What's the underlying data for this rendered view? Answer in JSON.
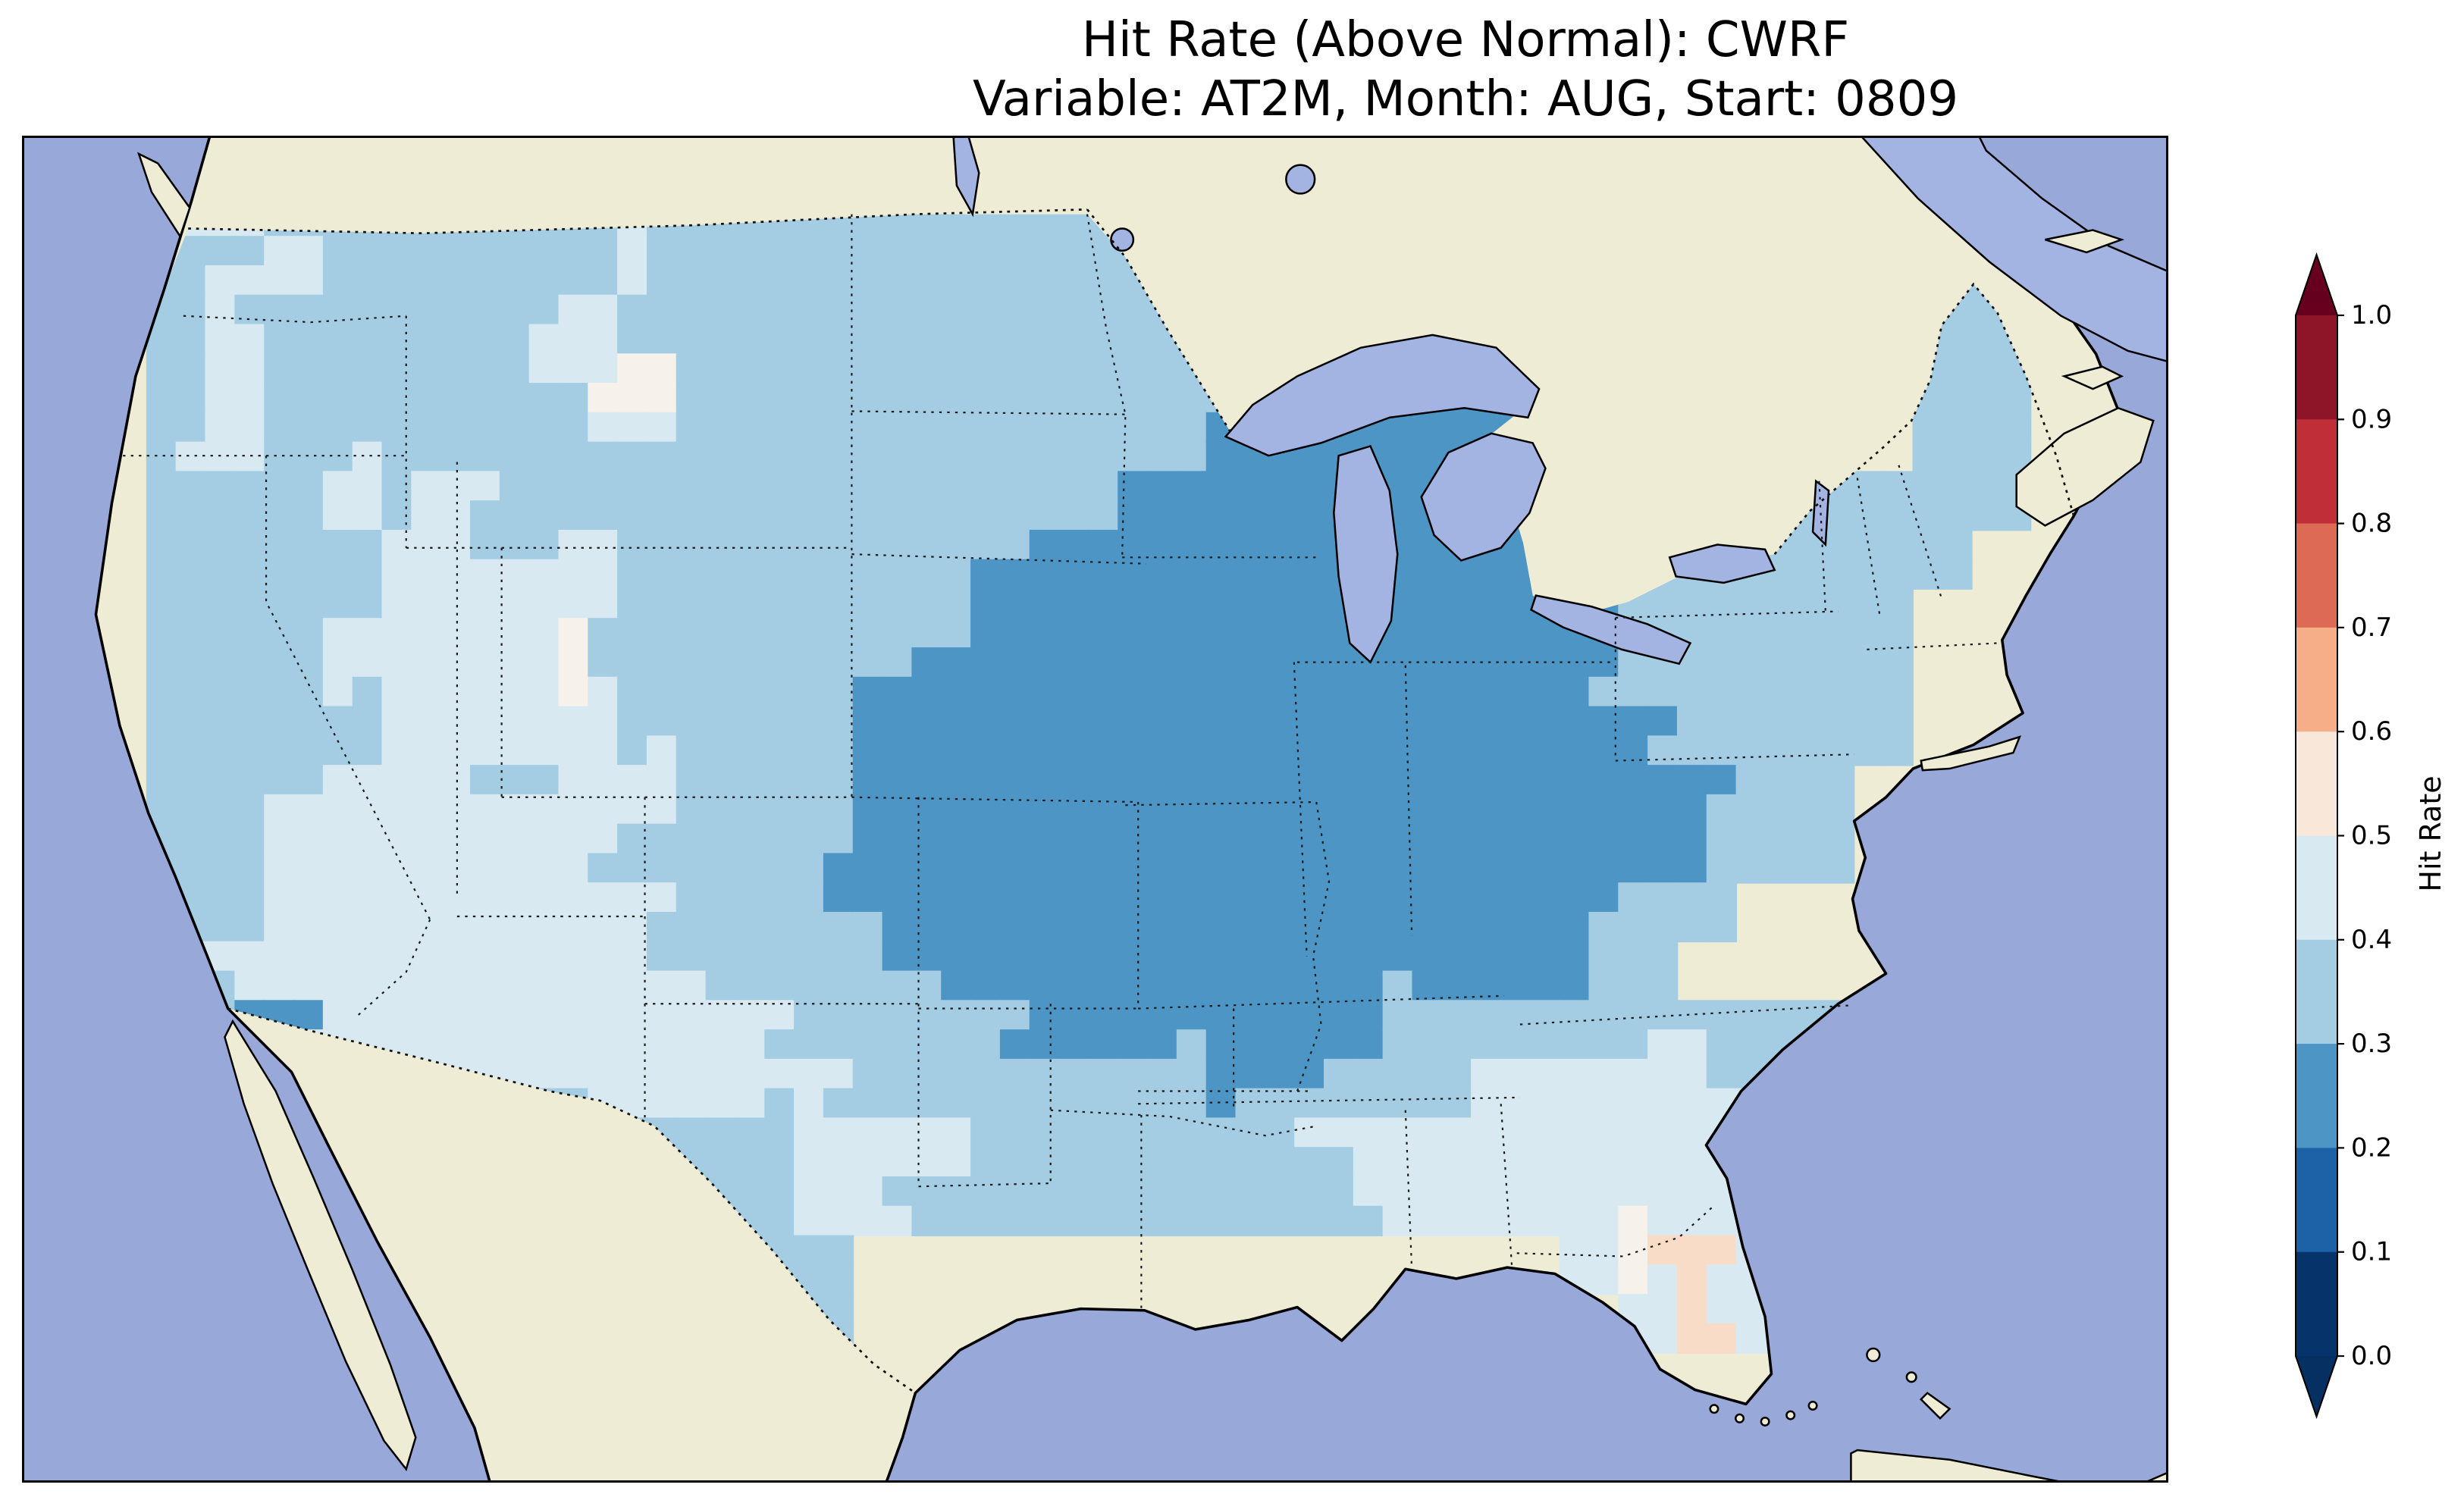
{
  "title": {
    "line1": "Hit Rate (Above Normal): CWRF",
    "line2": "Variable: AT2M, Month: AUG, Start: 0809"
  },
  "colorbar": {
    "label": "Hit Rate",
    "ticks": [
      "1.0",
      "0.9",
      "0.8",
      "0.7",
      "0.6",
      "0.5",
      "0.4",
      "0.3",
      "0.2",
      "0.1",
      "0.0"
    ]
  },
  "chart_data": {
    "type": "heatmap",
    "title": "Hit Rate (Above Normal): CWRF",
    "subtitle": "Variable: AT2M, Month: AUG, Start: 0809",
    "model": "CWRF",
    "variable": "AT2M",
    "month": "AUG",
    "start": "0809",
    "metric": "Hit Rate (Above Normal)",
    "colorbar_label": "Hit Rate",
    "colorbar_ticks": [
      0.0,
      0.1,
      0.2,
      0.3,
      0.4,
      0.5,
      0.6,
      0.7,
      0.8,
      0.9,
      1.0
    ],
    "colormap": "RdBu reversed, discrete 0.1 bins, arrow extensions below 0.0 and above 1.0",
    "bins": [
      {
        "range": [
          0.0,
          0.1
        ],
        "color": "#07336b"
      },
      {
        "range": [
          0.1,
          0.2
        ],
        "color": "#1d61a7"
      },
      {
        "range": [
          0.2,
          0.3
        ],
        "color": "#4c95c5"
      },
      {
        "range": [
          0.3,
          0.4
        ],
        "color": "#a4cde3"
      },
      {
        "range": [
          0.4,
          0.5
        ],
        "color": "#d9e9f1"
      },
      {
        "range": [
          0.5,
          0.6
        ],
        "color": "#f9e8da"
      },
      {
        "range": [
          0.6,
          0.7
        ],
        "color": "#f5ae87"
      },
      {
        "range": [
          0.7,
          0.8
        ],
        "color": "#dd6a54"
      },
      {
        "range": [
          0.8,
          0.9
        ],
        "color": "#c02f38"
      },
      {
        "range": [
          0.9,
          1.0
        ],
        "color": "#8e1428"
      }
    ],
    "under_arrow_color": "#053061",
    "over_arrow_color": "#67001f",
    "map_colors": {
      "ocean": "#98a9d9",
      "non_us_land": "#efecd6",
      "lakes": "#a3b3e2",
      "coastline": "#000000",
      "boundaries": "dotted black (states, Canada, Mexico)"
    },
    "cell_colors": {
      "2": "#4c95c5",
      "3": "#a4cde3",
      "4": "#d9e9f1",
      "5": "#f6f1ea",
      "6": "#f8dcc8"
    },
    "cell_legend": {
      "2": "hit rate 0.2-0.3",
      "3": "hit rate 0.3-0.4",
      "4": "hit rate 0.4-0.5",
      "5": "hit rate ~0.5 (near-white cells)",
      "6": "hit rate 0.5-0.6 (pale red cells)"
    },
    "observed_pattern": [
      {
        "region": "Upper Midwest / Great Lakes / Corn Belt (WI, MI, IA, IL, IN, MO, OH, KY)",
        "hit_rate": "0.2-0.3"
      },
      {
        "region": "Eastern Colorado and Kansas",
        "hit_rate": "0.2-0.3"
      },
      {
        "region": "Virginia / West Virginia / Chesapeake area",
        "hit_rate": "0.2-0.3"
      },
      {
        "region": "Most of the western, northern and coastal CONUS",
        "hit_rate": "0.3-0.4"
      },
      {
        "region": "Great Basin, Southwest, central Texas, Gulf Coast Southeast",
        "hit_rate": "0.4-0.5"
      },
      {
        "region": "Scattered cells in Utah, Montana, Washington, Florida",
        "hit_rate": "~0.5"
      },
      {
        "region": "Scattered cells in central/south Florida",
        "hit_rate": "0.5-0.6"
      }
    ],
    "grid": {
      "note": "Coarse approximation of the gridded hit-rate field over CONUS; one character per cell ('.' = outside data domain). Each row is split in 4 chunks to be joined.",
      "cols": 34,
      "rows": 20,
      "rows_values": [
        [
          ".343333333",
          "33333333..",
          "..........",
          ".33."
        ],
        [
          ".334333334",
          "333333333.",
          "..........",
          ".33."
        ],
        [
          ".343333343",
          "3333333333",
          "..........",
          ".33."
        ],
        [
          ".343333345",
          "3333333333",
          "2222......",
          ".33."
        ],
        [
          ".343333334",
          "3333333332",
          "22222.....",
          ".33."
        ],
        [
          ".333434333",
          "3333333322",
          "22222..333",
          "333."
        ],
        [
          ".333344343",
          "3333332222",
          "2222233333",
          "33.."
        ],
        [
          ".333344443",
          "3333322222",
          "2222223333",
          "3..."
        ],
        [
          ".333444453",
          "3333222222",
          "2222223333",
          "3..."
        ],
        [
          ".333344443",
          "3332222222",
          "2222222333",
          "3..."
        ],
        [
          ".333444344",
          "3332222222",
          "2222222233",
          "...."
        ],
        [
          ".334444443",
          "3332222222",
          "2222222233",
          "...."
        ],
        [
          ".334444444",
          "3332222222",
          "22222233..",
          "...."
        ],
        [
          ".344444444",
          "3333222222",
          "2222223...",
          "...."
        ],
        [
          ".332444444",
          "4433332222",
          "2233333333",
          "...."
        ],
        [
          ".333444444",
          "4443333332",
          "233344443.",
          "...."
        ],
        [
          ".......333",
          "3344433333",
          "344444444.",
          "...."
        ],
        [
          ".........3",
          "3344333333",
          "334444444.",
          "...."
        ],
        [
          "..........",
          "333.......",
          ".....4564.",
          "...."
        ],
        [
          "..........",
          ".33.......",
          "......464.",
          "...."
        ]
      ]
    }
  }
}
